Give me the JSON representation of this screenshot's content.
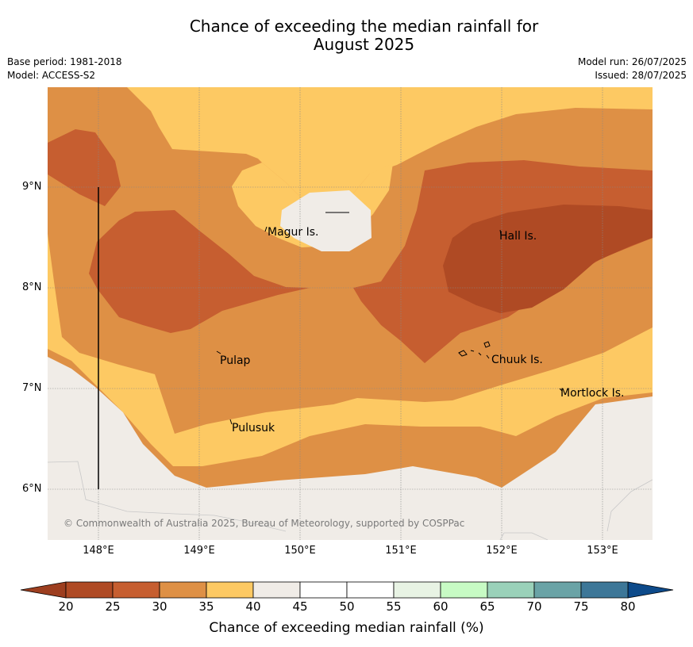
{
  "title_line1": "Chance of exceeding the median rainfall for",
  "title_line2": "August 2025",
  "meta_left": [
    "Base period: 1981-2018",
    "Model: ACCESS-S2"
  ],
  "meta_right": [
    "Model run: 26/07/2025",
    "Issued: 28/07/2025"
  ],
  "lat_labels": [
    "9°N",
    "8°N",
    "7°N",
    "6°N"
  ],
  "lon_labels": [
    "148°E",
    "149°E",
    "150°E",
    "151°E",
    "152°E",
    "153°E"
  ],
  "places": [
    "Magur Is.",
    "Hall Is.",
    "Pulap",
    "Chuuk Is.",
    "Mortlock Is.",
    "Pulusuk"
  ],
  "credit": "© Commonwealth of Australia 2025, Bureau of Meteorology, supported by COSPPac",
  "colorbar": {
    "ticks": [
      "20",
      "25",
      "30",
      "35",
      "40",
      "45",
      "50",
      "55",
      "60",
      "65",
      "70",
      "75",
      "80"
    ],
    "colors": [
      "#af4a24",
      "#c65e30",
      "#de9045",
      "#fdc963",
      "#f0ece7",
      "#ffffff",
      "#ffffff",
      "#e8f3e4",
      "#c7fbc4",
      "#9ad1b9",
      "#6aa3a6",
      "#3d7798"
    ],
    "under_color": "#9d3e1f",
    "over_color": "#0d4a8a",
    "label": "Chance of exceeding median rainfall (%)"
  },
  "map_colors": {
    "c20_25": "#af4a24",
    "c25_30": "#c65e30",
    "c30_35": "#de9045",
    "c35_40": "#fdc963",
    "c40_45": "#f0ece7"
  }
}
